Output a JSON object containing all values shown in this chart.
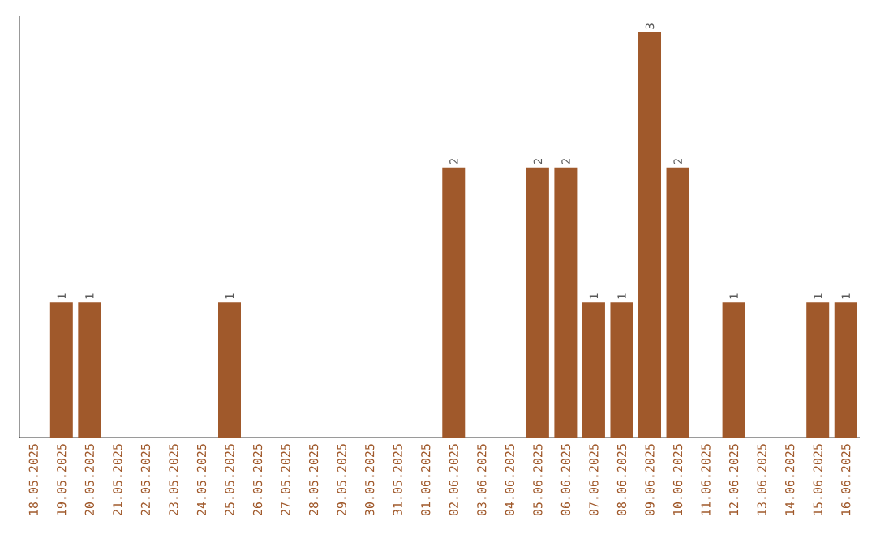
{
  "chart_data": {
    "type": "bar",
    "categories": [
      "18.05.2025",
      "19.05.2025",
      "20.05.2025",
      "21.05.2025",
      "22.05.2025",
      "23.05.2025",
      "24.05.2025",
      "25.05.2025",
      "26.05.2025",
      "27.05.2025",
      "28.05.2025",
      "29.05.2025",
      "30.05.2025",
      "31.05.2025",
      "01.06.2025",
      "02.06.2025",
      "03.06.2025",
      "04.06.2025",
      "05.06.2025",
      "06.06.2025",
      "07.06.2025",
      "08.06.2025",
      "09.06.2025",
      "10.06.2025",
      "11.06.2025",
      "12.06.2025",
      "13.06.2025",
      "14.06.2025",
      "15.06.2025",
      "16.06.2025"
    ],
    "values": [
      0,
      1,
      1,
      0,
      0,
      0,
      0,
      1,
      0,
      0,
      0,
      0,
      0,
      0,
      0,
      2,
      0,
      0,
      2,
      2,
      1,
      1,
      3,
      2,
      0,
      1,
      0,
      0,
      1,
      1
    ],
    "value_labels": [
      null,
      "1",
      "1",
      null,
      null,
      null,
      null,
      "1",
      null,
      null,
      null,
      null,
      null,
      null,
      null,
      "2",
      null,
      null,
      "2",
      "2",
      "1",
      "1",
      "3",
      "2",
      null,
      "1",
      null,
      null,
      "1",
      "1"
    ],
    "color": "#a0592b",
    "tick_labels": "x"
  }
}
